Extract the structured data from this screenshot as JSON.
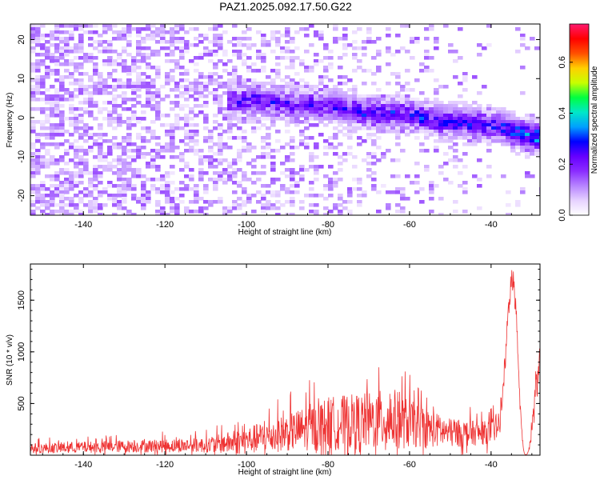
{
  "title": "PAZ1.2025.092.17.50.G22",
  "colors": {
    "snr_line": "#ee3333",
    "colormap": [
      "#ffffff",
      "#e6d2ff",
      "#b784ff",
      "#8a2cff",
      "#6600ff",
      "#0000ff",
      "#00a0ff",
      "#00e8c8",
      "#00ff40",
      "#c8ff00",
      "#ffd000",
      "#ff5000",
      "#ff0000",
      "#ff1a70"
    ]
  },
  "chart_data": [
    {
      "type": "heatmap",
      "xlabel": "Height of straight line (km)",
      "ylabel": "Frequency (Hz)",
      "xlim": [
        -153,
        -28
      ],
      "ylim": [
        -25,
        24
      ],
      "xticks": [
        -140,
        -120,
        -100,
        -80,
        -60,
        -40
      ],
      "yticks": [
        -20,
        -10,
        0,
        10,
        20
      ],
      "colorbar": {
        "label": "Normalized spectral amplitude",
        "range": [
          0,
          0.75
        ],
        "ticks": [
          "0.0",
          "0.2",
          "0.4",
          "0.6"
        ],
        "tick_values": [
          0.0,
          0.2,
          0.4,
          0.6
        ]
      },
      "ridge": [
        {
          "x": -105,
          "y": 4.5,
          "v": 0.24
        },
        {
          "x": -100,
          "y": 4.5,
          "v": 0.25
        },
        {
          "x": -95,
          "y": 4.0,
          "v": 0.26
        },
        {
          "x": -88,
          "y": 3.5,
          "v": 0.23
        },
        {
          "x": -80,
          "y": 3.0,
          "v": 0.25
        },
        {
          "x": -76,
          "y": 2.5,
          "v": 0.26
        },
        {
          "x": -70,
          "y": 1.0,
          "v": 0.28
        },
        {
          "x": -64,
          "y": 1.0,
          "v": 0.3
        },
        {
          "x": -58,
          "y": 0.5,
          "v": 0.29
        },
        {
          "x": -52,
          "y": -1.0,
          "v": 0.27
        },
        {
          "x": -46,
          "y": -1.5,
          "v": 0.26
        },
        {
          "x": -40,
          "y": -2.0,
          "v": 0.28
        },
        {
          "x": -36,
          "y": -3.0,
          "v": 0.32
        },
        {
          "x": -33,
          "y": -4.0,
          "v": 0.42
        },
        {
          "x": -30,
          "y": -5.0,
          "v": 0.38
        }
      ]
    },
    {
      "type": "line",
      "xlabel": "Height of straight line (km)",
      "ylabel": "SNR (10 * v/v)",
      "xlim": [
        -153,
        -28
      ],
      "ylim": [
        0,
        1850
      ],
      "xticks": [
        -140,
        -120,
        -100,
        -80,
        -60,
        -40
      ],
      "yticks": [
        500,
        1000,
        1500
      ],
      "envelope": [
        {
          "x": -153,
          "base": 60,
          "amp": 120
        },
        {
          "x": -130,
          "base": 80,
          "amp": 150
        },
        {
          "x": -110,
          "base": 90,
          "amp": 180
        },
        {
          "x": -101,
          "base": 120,
          "amp": 320
        },
        {
          "x": -90,
          "base": 200,
          "amp": 450
        },
        {
          "x": -80,
          "base": 280,
          "amp": 650
        },
        {
          "x": -70,
          "base": 300,
          "amp": 700
        },
        {
          "x": -64,
          "base": 320,
          "amp": 750
        },
        {
          "x": -58,
          "base": 260,
          "amp": 520
        },
        {
          "x": -50,
          "base": 200,
          "amp": 350
        },
        {
          "x": -42,
          "base": 200,
          "amp": 280
        },
        {
          "x": -38,
          "base": 250,
          "amp": 320
        },
        {
          "x": -28,
          "base": 250,
          "amp": 320
        }
      ],
      "peak": {
        "x": -34.8,
        "y": 1820,
        "width": 1.4
      },
      "dip": {
        "x": -31.5,
        "y": 0,
        "width": 1.0
      },
      "tail": {
        "x": -30,
        "y": 1100
      }
    }
  ]
}
